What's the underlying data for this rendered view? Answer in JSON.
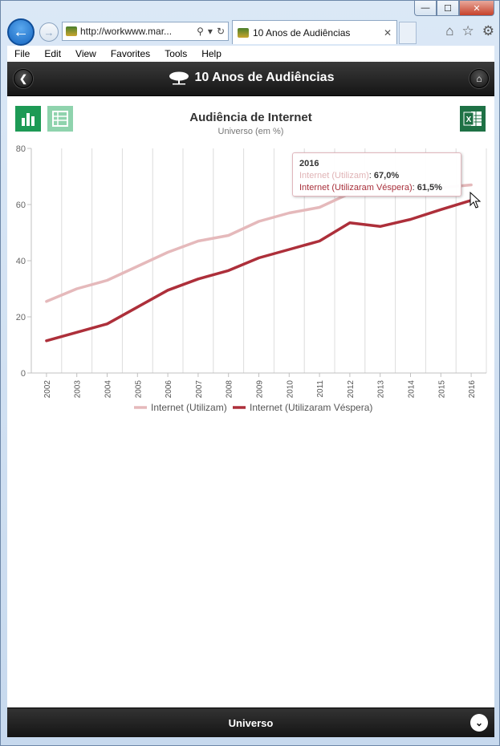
{
  "browser": {
    "caption": {
      "minimize": "—",
      "maximize": "☐",
      "close": "✕"
    },
    "address": "http://workwww.mar...",
    "tab_title": "10 Anos de Audiências",
    "menu": [
      "File",
      "Edit",
      "View",
      "Favorites",
      "Tools",
      "Help"
    ]
  },
  "app": {
    "title": "10 Anos de Audiências",
    "footer_label": "Universo"
  },
  "chart": {
    "title": "Audiência de Internet",
    "subtitle": "Universo (em %)"
  },
  "tooltip": {
    "year": "2016",
    "series1_label": "Internet (Utilizam)",
    "series1_value": "67,0%",
    "series2_label": "Internet (Utilizaram Véspera)",
    "series2_value": "61,5%"
  },
  "colors": {
    "series1": "#e5b9bb",
    "series2": "#ad2f3a",
    "excel_green": "#1e7145",
    "chart_icon_green": "#1d9a55",
    "table_icon_green": "#8fd3ad"
  },
  "chart_data": {
    "type": "line",
    "title": "Audiência de Internet",
    "subtitle": "Universo (em %)",
    "categories": [
      "2002",
      "2003",
      "2004",
      "2005",
      "2006",
      "2007",
      "2008",
      "2009",
      "2010",
      "2011",
      "2012",
      "2013",
      "2014",
      "2015",
      "2016"
    ],
    "series": [
      {
        "name": "Internet (Utilizam)",
        "values": [
          25.5,
          30,
          33,
          38,
          43,
          47,
          49,
          54,
          57,
          59,
          64,
          66,
          66,
          66,
          67.0
        ]
      },
      {
        "name": "Internet (Utilizaram Véspera)",
        "values": [
          11.5,
          14.5,
          17.5,
          23.5,
          29.5,
          33.5,
          36.5,
          41,
          44,
          47,
          53.5,
          52.2,
          54.7,
          58.2,
          61.5
        ]
      }
    ],
    "yticks": [
      0,
      20,
      40,
      60,
      80
    ],
    "ylim": [
      0,
      80
    ],
    "grid": true,
    "legend": "bottom"
  }
}
